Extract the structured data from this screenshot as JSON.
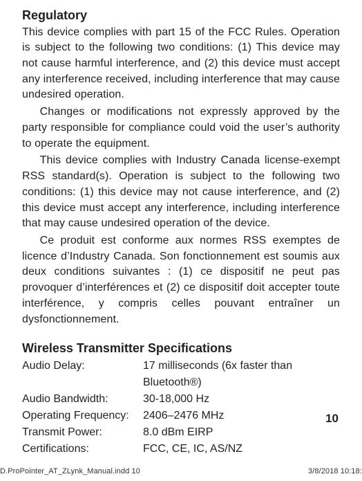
{
  "section1": {
    "heading": "Regulatory",
    "p1": "This device complies with part 15 of the FCC Rules. Operation is subject to the following two conditions: (1) This device may not cause harmful interference, and (2) this device must accept any interference received, including interference that may cause undesired operation.",
    "p2": "Changes or modifications not expressly approved by the party responsible for compliance could void the user’s authority to operate the equipment.",
    "p3": "This device complies with Industry Canada license-exempt RSS standard(s). Operation is subject to the following two conditions: (1) this device may not cause interference, and (2) this device must accept any interference, including interference that may cause undesired operation of the device.",
    "p4": "Ce produit est conforme aux normes RSS exemptes de licence d’Industry Canada. Son fonctionnement est soumis aux deux conditions suivantes : (1) ce dispositif ne peut pas provoquer d’interférences et (2) ce dispositif doit accepter toute interférence, y compris celles pouvant entraîner un dysfonctionnement."
  },
  "section2": {
    "heading": "Wireless Transmitter Specifications",
    "rows": [
      {
        "label": "Audio Delay:",
        "value": "17 milliseconds (6x faster than Bluetooth®)"
      },
      {
        "label": "Audio Bandwidth:",
        "value": "30-18,000 Hz"
      },
      {
        "label": "Operating Frequency:",
        "value": "2406–2476 MHz"
      },
      {
        "label": "Transmit Power:",
        "value": "8.0 dBm EIRP"
      },
      {
        "label": "Certifications:",
        "value": "FCC, CE, IC, AS/NZ"
      }
    ]
  },
  "page_number": "10",
  "footer": {
    "left": "D.ProPointer_AT_ZLynk_Manual.indd   10",
    "right": "3/8/2018   10:18:"
  }
}
